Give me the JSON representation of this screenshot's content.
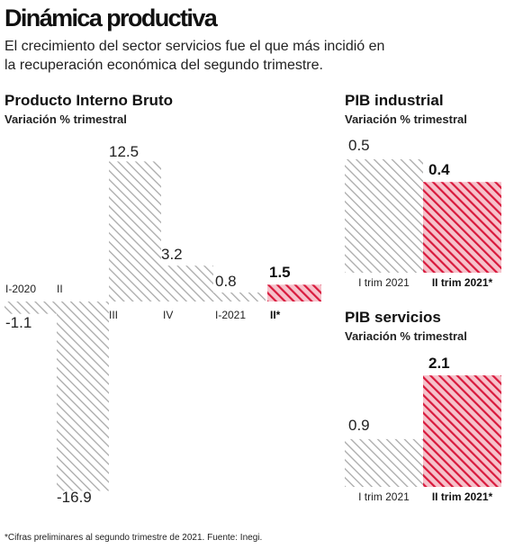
{
  "header": {
    "title": "Dinámica productiva",
    "subtitle_line1": "El crecimiento del sector servicios fue el que más incidió en",
    "subtitle_line2": "la recuperación económica del segundo trimestre."
  },
  "footnote": "*Cifras preliminares al segundo trimestre de 2021. Fuente: Inegi.",
  "colors": {
    "gray_hatch": "#a9a9a9",
    "highlight": "#d8193c",
    "text": "#1a1a1a"
  },
  "chart_data": [
    {
      "type": "bar",
      "title": "Producto Interno Bruto",
      "subtitle": "Variación % trimestral",
      "categories": [
        "I-2020",
        "II",
        "III",
        "IV",
        "I-2021",
        "II*"
      ],
      "values": [
        -1.1,
        -16.9,
        12.5,
        3.2,
        0.8,
        1.5
      ],
      "value_labels": [
        "-1.1",
        "-16.9",
        "12.5",
        "3.2",
        "0.8",
        "1.5"
      ],
      "highlight_index": 5
    },
    {
      "type": "bar",
      "title": "PIB industrial",
      "subtitle": "Variación % trimestral",
      "categories": [
        "I trim 2021",
        "II trim 2021*"
      ],
      "values": [
        0.5,
        0.4
      ],
      "value_labels": [
        "0.5",
        "0.4"
      ],
      "highlight_index": 1
    },
    {
      "type": "bar",
      "title": "PIB servicios",
      "subtitle": "Variación % trimestral",
      "categories": [
        "I trim 2021",
        "II trim 2021*"
      ],
      "values": [
        0.9,
        2.1
      ],
      "value_labels": [
        "0.9",
        "2.1"
      ],
      "highlight_index": 1
    }
  ]
}
